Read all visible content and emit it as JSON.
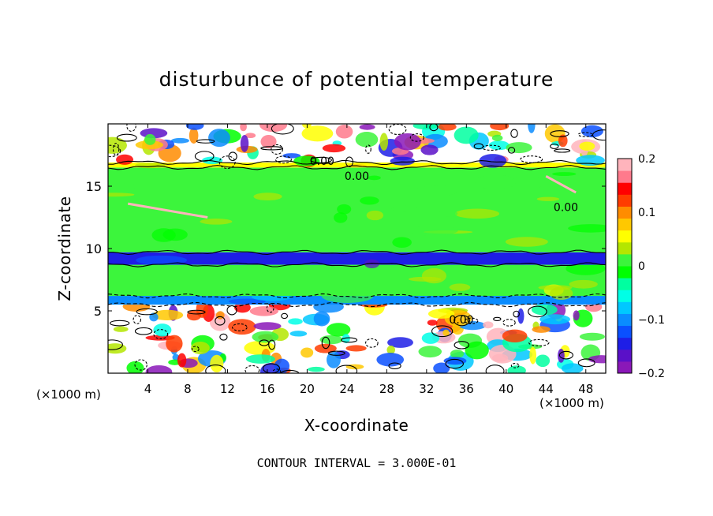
{
  "chart_data": {
    "type": "heatmap",
    "title": "disturbunce of potential temperature",
    "xlabel": "X-coordinate",
    "ylabel": "Z-coordinate",
    "x_unit_label_left": "(×1000 m)",
    "x_unit_label_right": "(×1000 m)",
    "xlim": [
      0,
      50
    ],
    "ylim": [
      0,
      20
    ],
    "x_ticks": [
      4,
      8,
      12,
      16,
      20,
      24,
      28,
      32,
      36,
      40,
      44,
      48
    ],
    "y_ticks": [
      5,
      10,
      15
    ],
    "colorbar": {
      "min": -0.2,
      "max": 0.2,
      "ticks": [
        {
          "value": 0.2,
          "label": "0.2"
        },
        {
          "value": 0.1,
          "label": "0.1"
        },
        {
          "value": 0.0,
          "label": "0"
        },
        {
          "value": -0.1,
          "label": "−0.1"
        },
        {
          "value": -0.2,
          "label": "−0.2"
        }
      ],
      "colors": [
        "#8a18b8",
        "#5a10c8",
        "#1e1ee6",
        "#0a50ff",
        "#0a8cff",
        "#00c8ff",
        "#00ffe6",
        "#00ffa0",
        "#00ff00",
        "#3cf53c",
        "#b4e600",
        "#ffff00",
        "#ffc800",
        "#ff8c00",
        "#ff3c00",
        "#ff0000",
        "#ff7a8c",
        "#ffb4bc"
      ]
    },
    "contour_interval_text": "CONTOUR INTERVAL = 3.000E-01",
    "contour_labels": [
      {
        "x": 21.5,
        "z": 16.7,
        "text": "0.00"
      },
      {
        "x": 25.0,
        "z": 15.5,
        "text": "0.00"
      },
      {
        "x": 46.0,
        "z": 13.0,
        "text": "0.00"
      },
      {
        "x": 35.5,
        "z": 4.0,
        "text": "0.00"
      }
    ],
    "bands": [
      {
        "z_range": [
          0,
          5.5
        ],
        "description": "turbulent mixed field, values span -0.2 to 0.2"
      },
      {
        "z_range": [
          5.5,
          6.2
        ],
        "value": -0.1
      },
      {
        "z_range": [
          6.2,
          8.7
        ],
        "value": 0.02
      },
      {
        "z_range": [
          8.7,
          9.7
        ],
        "value": -0.15
      },
      {
        "z_range": [
          9.7,
          16.5
        ],
        "value": 0.01
      },
      {
        "z_range": [
          16.5,
          16.9
        ],
        "value": 0.06
      },
      {
        "z_range": [
          16.9,
          20
        ],
        "description": "mixed field, values span -0.2 to 0.2"
      }
    ]
  }
}
